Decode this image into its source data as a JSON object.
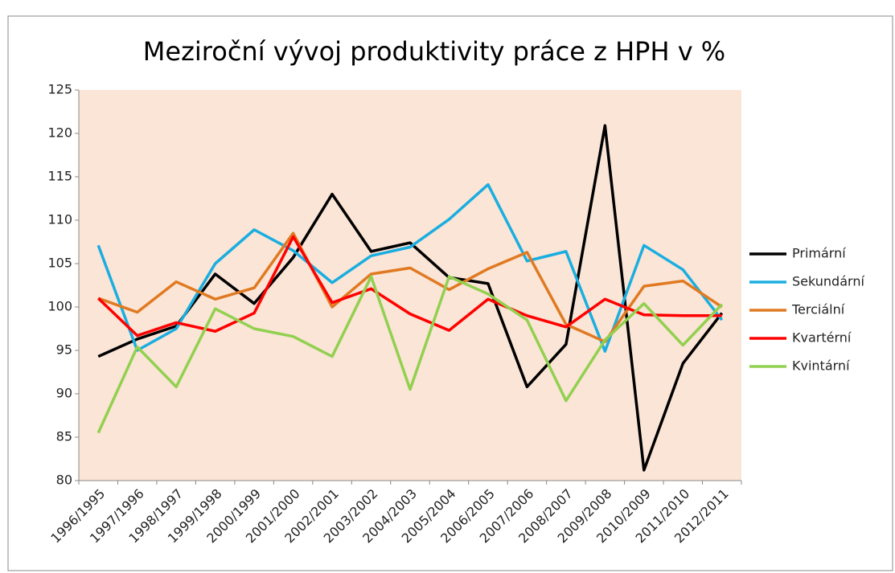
{
  "chart_data": {
    "type": "line",
    "title": "Meziroční vývoj produktivity práce z HPH v %",
    "categories": [
      "1996/1995",
      "1997/1996",
      "1998/1997",
      "1999/1998",
      "2000/1999",
      "2001/2000",
      "2002/2001",
      "2003/2002",
      "2004/2003",
      "2005/2004",
      "2006/2005",
      "2007/2006",
      "2008/2007",
      "2009/2008",
      "2010/2009",
      "2011/2010",
      "2012/2011"
    ],
    "series": [
      {
        "name": "Primární",
        "color": "#000000",
        "values": [
          94.3,
          96.3,
          97.8,
          103.8,
          100.4,
          105.7,
          113.0,
          106.4,
          107.4,
          103.4,
          102.7,
          90.8,
          95.7,
          120.9,
          81.2,
          93.5,
          99.3
        ]
      },
      {
        "name": "Sekundární",
        "color": "#1aaee0",
        "values": [
          107.1,
          95.0,
          97.5,
          105.0,
          108.9,
          106.5,
          102.8,
          105.9,
          106.9,
          110.1,
          114.1,
          105.3,
          106.4,
          94.9,
          107.1,
          104.3,
          98.5
        ]
      },
      {
        "name": "Terciální",
        "color": "#e07a22",
        "values": [
          101.0,
          99.4,
          102.9,
          100.9,
          102.2,
          108.5,
          100.0,
          103.8,
          104.5,
          102.0,
          104.4,
          106.3,
          98.0,
          96.0,
          102.4,
          103.0,
          100.0
        ]
      },
      {
        "name": "Kvartérní",
        "color": "#ff0000",
        "values": [
          101.0,
          96.7,
          98.2,
          97.2,
          99.3,
          108.1,
          100.5,
          102.1,
          99.2,
          97.3,
          100.9,
          99.0,
          97.7,
          100.9,
          99.1,
          99.0,
          99.0
        ]
      },
      {
        "name": "Kvintární",
        "color": "#92d050",
        "values": [
          85.5,
          95.4,
          90.8,
          99.8,
          97.5,
          96.6,
          94.3,
          103.5,
          90.5,
          103.5,
          101.5,
          98.5,
          89.2,
          96.2,
          100.4,
          95.6,
          100.3
        ]
      }
    ],
    "ylim": [
      80,
      125
    ],
    "yticks": [
      80,
      85,
      90,
      95,
      100,
      105,
      110,
      115,
      120,
      125
    ],
    "grid": false,
    "legend": "right",
    "plot_background": "#fbe5d6"
  }
}
